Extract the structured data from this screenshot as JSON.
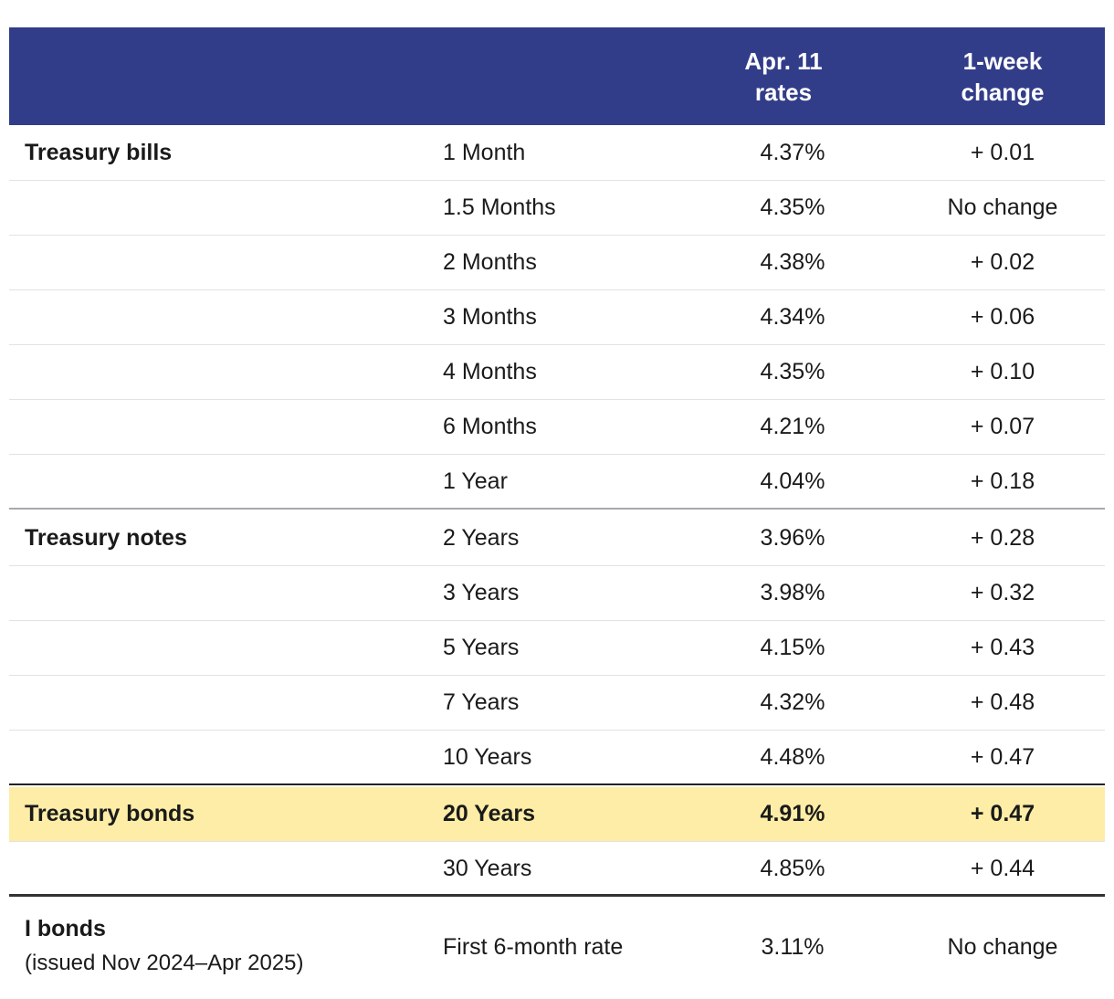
{
  "table": {
    "header": {
      "rate": [
        "Apr. 11",
        "rates"
      ],
      "change": [
        "1-week",
        "change"
      ]
    },
    "groups": [
      {
        "label": "Treasury bills",
        "rows": [
          {
            "term": "1 Month",
            "rate": "4.37%",
            "change": "+ 0.01"
          },
          {
            "term": "1.5 Months",
            "rate": "4.35%",
            "change": "No change"
          },
          {
            "term": "2 Months",
            "rate": "4.38%",
            "change": "+ 0.02"
          },
          {
            "term": "3 Months",
            "rate": "4.34%",
            "change": "+ 0.06"
          },
          {
            "term": "4 Months",
            "rate": "4.35%",
            "change": "+ 0.10"
          },
          {
            "term": "6 Months",
            "rate": "4.21%",
            "change": "+ 0.07"
          },
          {
            "term": "1 Year",
            "rate": "4.04%",
            "change": "+ 0.18"
          }
        ]
      },
      {
        "label": "Treasury notes",
        "rows": [
          {
            "term": "2 Years",
            "rate": "3.96%",
            "change": "+ 0.28"
          },
          {
            "term": "3 Years",
            "rate": "3.98%",
            "change": "+ 0.32"
          },
          {
            "term": "5 Years",
            "rate": "4.15%",
            "change": "+ 0.43"
          },
          {
            "term": "7 Years",
            "rate": "4.32%",
            "change": "+ 0.48"
          },
          {
            "term": "10 Years",
            "rate": "4.48%",
            "change": "+ 0.47"
          }
        ]
      },
      {
        "label": "Treasury bonds",
        "rows": [
          {
            "term": "20 Years",
            "rate": "4.91%",
            "change": "+ 0.47",
            "highlight": true
          },
          {
            "term": "30 Years",
            "rate": "4.85%",
            "change": "+ 0.44"
          }
        ]
      },
      {
        "label": "I bonds",
        "note": "(issued Nov 2024–Apr 2025)",
        "rows": [
          {
            "term": "First 6-month rate",
            "rate": "3.11%",
            "change": "No change"
          }
        ]
      }
    ]
  }
}
